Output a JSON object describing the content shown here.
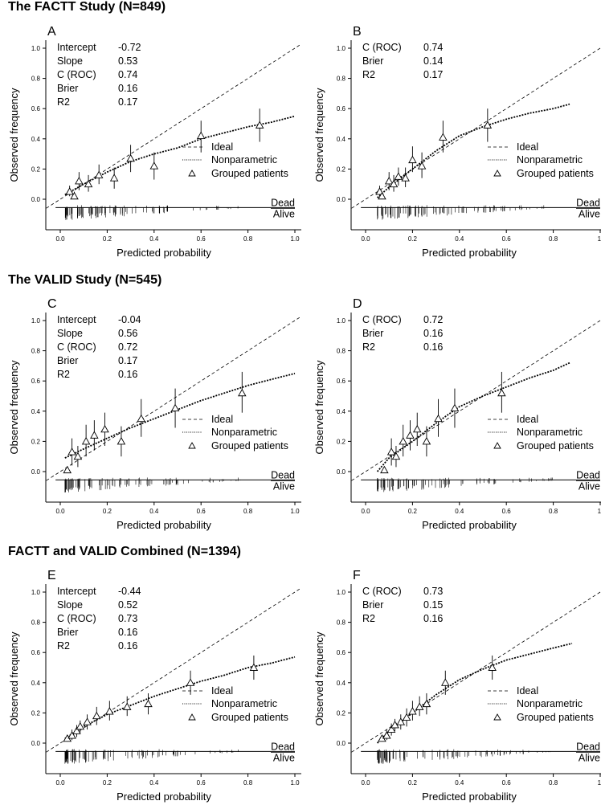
{
  "sections": [
    {
      "title": "The FACTT Study (N=849)"
    },
    {
      "title": "The VALID Study (N=545)"
    },
    {
      "title": "FACTT and VALID Combined (N=1394)"
    }
  ],
  "legend": {
    "ideal": "Ideal",
    "nonparametric": "Nonparametric",
    "grouped": "Grouped patients"
  },
  "outcome_labels": {
    "dead": "Dead",
    "alive": "Alive"
  },
  "chart_data": [
    {
      "panel": "A",
      "type": "scatter",
      "xlabel": "Predicted probability",
      "ylabel": "Observed frequency",
      "xlim": [
        0,
        1.0
      ],
      "ylim": [
        -0.1,
        1.0
      ],
      "xticks": [
        "0.0",
        "0.2",
        "0.4",
        "0.6",
        "0.8",
        "1.0"
      ],
      "yticks": [
        "0.0",
        "0.2",
        "0.4",
        "0.6",
        "0.8",
        "1.0"
      ],
      "stats": [
        [
          "Intercept",
          "-0.72"
        ],
        [
          "Slope",
          "0.53"
        ],
        [
          "C (ROC)",
          "0.74"
        ],
        [
          "Brier",
          "0.16"
        ],
        [
          "R2",
          "0.17"
        ]
      ],
      "grouped_points": [
        {
          "x": 0.04,
          "y": 0.05,
          "lo": 0.02,
          "hi": 0.09
        },
        {
          "x": 0.06,
          "y": 0.02,
          "lo": 0.0,
          "hi": 0.05
        },
        {
          "x": 0.08,
          "y": 0.12,
          "lo": 0.06,
          "hi": 0.18
        },
        {
          "x": 0.12,
          "y": 0.1,
          "lo": 0.05,
          "hi": 0.16
        },
        {
          "x": 0.165,
          "y": 0.16,
          "lo": 0.1,
          "hi": 0.23
        },
        {
          "x": 0.23,
          "y": 0.14,
          "lo": 0.07,
          "hi": 0.21
        },
        {
          "x": 0.3,
          "y": 0.27,
          "lo": 0.18,
          "hi": 0.36
        },
        {
          "x": 0.4,
          "y": 0.22,
          "lo": 0.13,
          "hi": 0.31
        },
        {
          "x": 0.6,
          "y": 0.42,
          "lo": 0.31,
          "hi": 0.52
        },
        {
          "x": 0.85,
          "y": 0.49,
          "lo": 0.38,
          "hi": 0.6
        }
      ],
      "nonparametric": [
        [
          0.02,
          0.03
        ],
        [
          0.1,
          0.1
        ],
        [
          0.2,
          0.18
        ],
        [
          0.3,
          0.25
        ],
        [
          0.4,
          0.3
        ],
        [
          0.5,
          0.34
        ],
        [
          0.6,
          0.4
        ],
        [
          0.7,
          0.44
        ],
        [
          0.8,
          0.48
        ],
        [
          0.9,
          0.51
        ],
        [
          1.0,
          0.55
        ]
      ]
    },
    {
      "panel": "B",
      "type": "scatter",
      "xlabel": "Predicted probability",
      "ylabel": "Observed frequency",
      "xlim": [
        0,
        1.0
      ],
      "ylim": [
        -0.1,
        1.0
      ],
      "xticks": [
        "0.0",
        "0.2",
        "0.4",
        "0.6",
        "0.8",
        "1."
      ],
      "yticks": [
        "0.0",
        "0.2",
        "0.4",
        "0.6",
        "0.8",
        "1.0"
      ],
      "stats": [
        [
          "C (ROC)",
          "0.74"
        ],
        [
          "Brier",
          "0.14"
        ],
        [
          "R2",
          "0.17"
        ]
      ],
      "grouped_points": [
        {
          "x": 0.06,
          "y": 0.05,
          "lo": 0.02,
          "hi": 0.09
        },
        {
          "x": 0.07,
          "y": 0.02,
          "lo": 0.0,
          "hi": 0.05
        },
        {
          "x": 0.1,
          "y": 0.12,
          "lo": 0.06,
          "hi": 0.18
        },
        {
          "x": 0.12,
          "y": 0.1,
          "lo": 0.05,
          "hi": 0.16
        },
        {
          "x": 0.14,
          "y": 0.15,
          "lo": 0.09,
          "hi": 0.21
        },
        {
          "x": 0.17,
          "y": 0.14,
          "lo": 0.08,
          "hi": 0.21
        },
        {
          "x": 0.2,
          "y": 0.26,
          "lo": 0.18,
          "hi": 0.35
        },
        {
          "x": 0.24,
          "y": 0.22,
          "lo": 0.14,
          "hi": 0.31
        },
        {
          "x": 0.33,
          "y": 0.41,
          "lo": 0.31,
          "hi": 0.52
        },
        {
          "x": 0.52,
          "y": 0.49,
          "lo": 0.38,
          "hi": 0.6
        }
      ],
      "nonparametric": [
        [
          0.05,
          0.01
        ],
        [
          0.1,
          0.08
        ],
        [
          0.2,
          0.2
        ],
        [
          0.3,
          0.32
        ],
        [
          0.4,
          0.42
        ],
        [
          0.5,
          0.48
        ],
        [
          0.6,
          0.53
        ],
        [
          0.7,
          0.57
        ],
        [
          0.8,
          0.6
        ],
        [
          0.87,
          0.63
        ]
      ]
    },
    {
      "panel": "C",
      "type": "scatter",
      "xlabel": "Predicted probability",
      "ylabel": "Observed frequency",
      "xlim": [
        0,
        1.0
      ],
      "ylim": [
        -0.1,
        1.0
      ],
      "xticks": [
        "0.0",
        "0.2",
        "0.4",
        "0.6",
        "0.8",
        "1.0"
      ],
      "yticks": [
        "0.0",
        "0.2",
        "0.4",
        "0.6",
        "0.8",
        "1.0"
      ],
      "stats": [
        [
          "Intercept",
          "-0.04"
        ],
        [
          "Slope",
          "0.56"
        ],
        [
          "C (ROC)",
          "0.72"
        ],
        [
          "Brier",
          "0.17"
        ],
        [
          "R2",
          "0.16"
        ]
      ],
      "grouped_points": [
        {
          "x": 0.03,
          "y": 0.01,
          "lo": 0.0,
          "hi": 0.03
        },
        {
          "x": 0.05,
          "y": 0.13,
          "lo": 0.04,
          "hi": 0.22
        },
        {
          "x": 0.075,
          "y": 0.1,
          "lo": 0.03,
          "hi": 0.17
        },
        {
          "x": 0.11,
          "y": 0.2,
          "lo": 0.1,
          "hi": 0.31
        },
        {
          "x": 0.145,
          "y": 0.24,
          "lo": 0.14,
          "hi": 0.34
        },
        {
          "x": 0.19,
          "y": 0.28,
          "lo": 0.17,
          "hi": 0.39
        },
        {
          "x": 0.26,
          "y": 0.2,
          "lo": 0.1,
          "hi": 0.3
        },
        {
          "x": 0.345,
          "y": 0.35,
          "lo": 0.23,
          "hi": 0.48
        },
        {
          "x": 0.49,
          "y": 0.42,
          "lo": 0.29,
          "hi": 0.55
        },
        {
          "x": 0.775,
          "y": 0.52,
          "lo": 0.39,
          "hi": 0.66
        }
      ],
      "nonparametric": [
        [
          0.02,
          0.09
        ],
        [
          0.1,
          0.15
        ],
        [
          0.2,
          0.22
        ],
        [
          0.3,
          0.29
        ],
        [
          0.4,
          0.35
        ],
        [
          0.5,
          0.41
        ],
        [
          0.6,
          0.47
        ],
        [
          0.7,
          0.52
        ],
        [
          0.8,
          0.57
        ],
        [
          0.9,
          0.61
        ],
        [
          1.0,
          0.65
        ]
      ]
    },
    {
      "panel": "D",
      "type": "scatter",
      "xlabel": "Predicted probability",
      "ylabel": "Observed frequency",
      "xlim": [
        0,
        1.0
      ],
      "ylim": [
        -0.1,
        1.0
      ],
      "xticks": [
        "0.0",
        "0.2",
        "0.4",
        "0.6",
        "0.8",
        "1."
      ],
      "yticks": [
        "0.0",
        "0.2",
        "0.4",
        "0.6",
        "0.8",
        "1.0"
      ],
      "stats": [
        [
          "C (ROC)",
          "0.72"
        ],
        [
          "Brier",
          "0.16"
        ],
        [
          "R2",
          "0.16"
        ]
      ],
      "grouped_points": [
        {
          "x": 0.08,
          "y": 0.01,
          "lo": 0.0,
          "hi": 0.03
        },
        {
          "x": 0.11,
          "y": 0.13,
          "lo": 0.04,
          "hi": 0.22
        },
        {
          "x": 0.13,
          "y": 0.1,
          "lo": 0.03,
          "hi": 0.17
        },
        {
          "x": 0.16,
          "y": 0.2,
          "lo": 0.1,
          "hi": 0.31
        },
        {
          "x": 0.19,
          "y": 0.24,
          "lo": 0.14,
          "hi": 0.34
        },
        {
          "x": 0.22,
          "y": 0.28,
          "lo": 0.17,
          "hi": 0.39
        },
        {
          "x": 0.26,
          "y": 0.2,
          "lo": 0.1,
          "hi": 0.3
        },
        {
          "x": 0.31,
          "y": 0.35,
          "lo": 0.23,
          "hi": 0.48
        },
        {
          "x": 0.38,
          "y": 0.42,
          "lo": 0.29,
          "hi": 0.55
        },
        {
          "x": 0.58,
          "y": 0.52,
          "lo": 0.39,
          "hi": 0.66
        }
      ],
      "nonparametric": [
        [
          0.05,
          0.0
        ],
        [
          0.1,
          0.09
        ],
        [
          0.2,
          0.2
        ],
        [
          0.3,
          0.32
        ],
        [
          0.4,
          0.43
        ],
        [
          0.5,
          0.5
        ],
        [
          0.6,
          0.56
        ],
        [
          0.7,
          0.62
        ],
        [
          0.8,
          0.67
        ],
        [
          0.87,
          0.72
        ]
      ]
    },
    {
      "panel": "E",
      "type": "scatter",
      "xlabel": "Predicted probability",
      "ylabel": "Observed frequency",
      "xlim": [
        0,
        1.0
      ],
      "ylim": [
        -0.1,
        1.0
      ],
      "xticks": [
        "0.0",
        "0.2",
        "0.4",
        "0.6",
        "0.8",
        "1.0"
      ],
      "yticks": [
        "0.0",
        "0.2",
        "0.4",
        "0.6",
        "0.8",
        "1.0"
      ],
      "stats": [
        [
          "Intercept",
          "-0.44"
        ],
        [
          "Slope",
          "0.52"
        ],
        [
          "C (ROC)",
          "0.73"
        ],
        [
          "Brier",
          "0.16"
        ],
        [
          "R2",
          "0.16"
        ]
      ],
      "grouped_points": [
        {
          "x": 0.03,
          "y": 0.03,
          "lo": 0.01,
          "hi": 0.05
        },
        {
          "x": 0.05,
          "y": 0.05,
          "lo": 0.02,
          "hi": 0.09
        },
        {
          "x": 0.07,
          "y": 0.08,
          "lo": 0.04,
          "hi": 0.12
        },
        {
          "x": 0.085,
          "y": 0.11,
          "lo": 0.07,
          "hi": 0.15
        },
        {
          "x": 0.115,
          "y": 0.14,
          "lo": 0.09,
          "hi": 0.19
        },
        {
          "x": 0.155,
          "y": 0.18,
          "lo": 0.12,
          "hi": 0.24
        },
        {
          "x": 0.21,
          "y": 0.21,
          "lo": 0.15,
          "hi": 0.28
        },
        {
          "x": 0.285,
          "y": 0.24,
          "lo": 0.18,
          "hi": 0.31
        },
        {
          "x": 0.375,
          "y": 0.26,
          "lo": 0.19,
          "hi": 0.33
        },
        {
          "x": 0.555,
          "y": 0.4,
          "lo": 0.32,
          "hi": 0.48
        },
        {
          "x": 0.825,
          "y": 0.5,
          "lo": 0.42,
          "hi": 0.58
        }
      ],
      "nonparametric": [
        [
          0.02,
          0.03
        ],
        [
          0.1,
          0.11
        ],
        [
          0.2,
          0.19
        ],
        [
          0.3,
          0.25
        ],
        [
          0.4,
          0.31
        ],
        [
          0.5,
          0.36
        ],
        [
          0.6,
          0.41
        ],
        [
          0.7,
          0.45
        ],
        [
          0.8,
          0.5
        ],
        [
          0.9,
          0.53
        ],
        [
          1.0,
          0.57
        ]
      ]
    },
    {
      "panel": "F",
      "type": "scatter",
      "xlabel": "Predicted probability",
      "ylabel": "Observed frequency",
      "xlim": [
        0,
        1.0
      ],
      "ylim": [
        -0.1,
        1.0
      ],
      "xticks": [
        "0.0",
        "0.2",
        "0.4",
        "0.6",
        "0.8",
        "1."
      ],
      "yticks": [
        "0.0",
        "0.2",
        "0.4",
        "0.6",
        "0.8",
        "1.0"
      ],
      "stats": [
        [
          "C (ROC)",
          "0.73"
        ],
        [
          "Brier",
          "0.15"
        ],
        [
          "R2",
          "0.16"
        ]
      ],
      "grouped_points": [
        {
          "x": 0.07,
          "y": 0.03,
          "lo": 0.01,
          "hi": 0.05
        },
        {
          "x": 0.09,
          "y": 0.05,
          "lo": 0.02,
          "hi": 0.09
        },
        {
          "x": 0.11,
          "y": 0.09,
          "lo": 0.05,
          "hi": 0.13
        },
        {
          "x": 0.125,
          "y": 0.12,
          "lo": 0.08,
          "hi": 0.16
        },
        {
          "x": 0.15,
          "y": 0.14,
          "lo": 0.09,
          "hi": 0.19
        },
        {
          "x": 0.175,
          "y": 0.17,
          "lo": 0.11,
          "hi": 0.23
        },
        {
          "x": 0.2,
          "y": 0.21,
          "lo": 0.15,
          "hi": 0.28
        },
        {
          "x": 0.23,
          "y": 0.24,
          "lo": 0.18,
          "hi": 0.31
        },
        {
          "x": 0.26,
          "y": 0.26,
          "lo": 0.19,
          "hi": 0.33
        },
        {
          "x": 0.34,
          "y": 0.4,
          "lo": 0.32,
          "hi": 0.48
        },
        {
          "x": 0.54,
          "y": 0.5,
          "lo": 0.42,
          "hi": 0.58
        }
      ],
      "nonparametric": [
        [
          0.05,
          0.0
        ],
        [
          0.1,
          0.08
        ],
        [
          0.2,
          0.2
        ],
        [
          0.3,
          0.32
        ],
        [
          0.4,
          0.42
        ],
        [
          0.5,
          0.49
        ],
        [
          0.6,
          0.55
        ],
        [
          0.7,
          0.59
        ],
        [
          0.8,
          0.63
        ],
        [
          0.88,
          0.66
        ]
      ]
    }
  ]
}
